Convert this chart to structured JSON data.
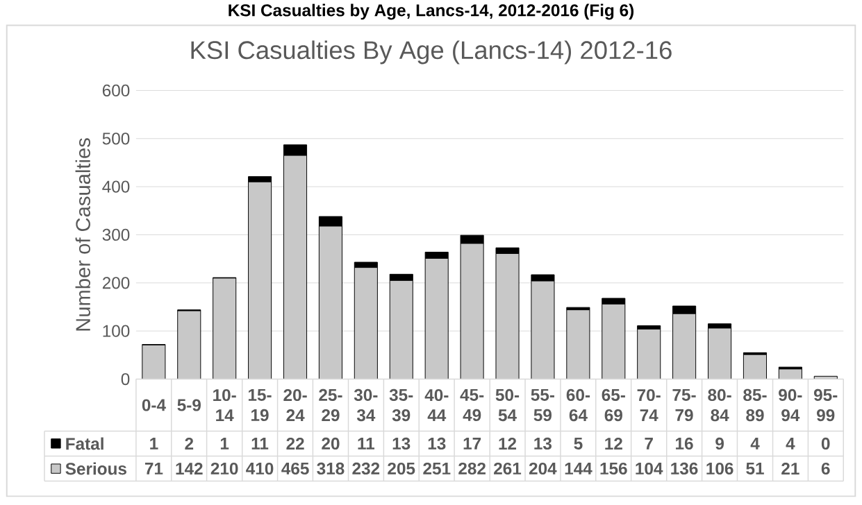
{
  "chart_data": {
    "type": "bar",
    "title": "KSI Casualties by Age, Lancs-14, 2012-2016 (Fig 6)",
    "subtitle": "KSI Casualties By Age (Lancs-14) 2012-16",
    "ylabel": "Number of Casualties",
    "categories": [
      "0-4",
      "5-9",
      "10-14",
      "15-19",
      "20-24",
      "25-29",
      "30-34",
      "35-39",
      "40-44",
      "45-49",
      "50-54",
      "55-59",
      "60-64",
      "65-69",
      "70-74",
      "75-79",
      "80-84",
      "85-89",
      "90-94",
      "95-99"
    ],
    "series": [
      {
        "name": "Serious",
        "color": "#c8c8c8",
        "values": [
          71,
          142,
          210,
          410,
          465,
          318,
          232,
          205,
          251,
          282,
          261,
          204,
          144,
          156,
          104,
          136,
          106,
          51,
          21,
          6
        ],
        "value_labels": [
          "71",
          "142",
          "210",
          "410",
          "465",
          "318",
          "232",
          "205",
          "251",
          "282",
          "261",
          "204",
          "144",
          "156",
          "104",
          "136",
          "106",
          "51",
          "21",
          "6"
        ]
      },
      {
        "name": "Fatal",
        "color": "#000000",
        "values": [
          1,
          2,
          1,
          11,
          22,
          20,
          11,
          13,
          13,
          17,
          12,
          13,
          5,
          12,
          7,
          16,
          9,
          4,
          4,
          0
        ],
        "value_labels": [
          "1",
          "2",
          "1",
          "11",
          "22",
          "20",
          "11",
          "13",
          "13",
          "17",
          "12",
          "13",
          "5",
          "12",
          "7",
          "16",
          "9",
          "4",
          "4",
          "0"
        ]
      }
    ],
    "stacked": true,
    "ylim": [
      0,
      600
    ],
    "yticks": [
      0,
      100,
      200,
      300,
      400,
      500,
      600
    ],
    "grid": "y",
    "legend": "bottom"
  }
}
